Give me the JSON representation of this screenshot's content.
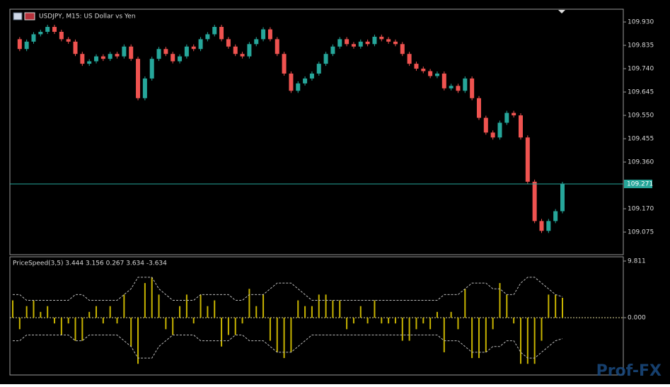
{
  "chart_data": [
    {
      "type": "candlestick",
      "title": "USDJPY, M15:  US Dollar vs Yen",
      "values": [
        109.86,
        109.82,
        109.85,
        109.88,
        109.89,
        109.91,
        109.89,
        109.86,
        109.85,
        109.8,
        109.76,
        109.77,
        109.79,
        109.78,
        109.8,
        109.79,
        109.83,
        109.78,
        109.62,
        109.7,
        109.78,
        109.82,
        109.8,
        109.77,
        109.79,
        109.83,
        109.82,
        109.86,
        109.88,
        109.91,
        109.86,
        109.83,
        109.8,
        109.79,
        109.84,
        109.86,
        109.9,
        109.86,
        109.8,
        109.72,
        109.65,
        109.68,
        109.7,
        109.72,
        109.76,
        109.8,
        109.83,
        109.86,
        109.84,
        109.83,
        109.85,
        109.84,
        109.87,
        109.86,
        109.85,
        109.84,
        109.8,
        109.76,
        109.74,
        109.73,
        109.71,
        109.72,
        109.66,
        109.67,
        109.65,
        109.7,
        109.62,
        109.54,
        109.48,
        109.46,
        109.52,
        109.56,
        109.55,
        109.46,
        109.28,
        109.12,
        109.08,
        109.12,
        109.16,
        109.271
      ],
      "up_color": "#26a69a",
      "down_color": "#ef5350",
      "current_price": 109.271,
      "current_color": "#26a69a",
      "ylim": [
        108.983,
        109.982
      ],
      "yticks": [
        {
          "value": 109.93,
          "label": "109.930"
        },
        {
          "value": 109.835,
          "label": "109.835"
        },
        {
          "value": 109.74,
          "label": "109.740"
        },
        {
          "value": 109.645,
          "label": "109.645"
        },
        {
          "value": 109.55,
          "label": "109.550"
        },
        {
          "value": 109.455,
          "label": "109.455"
        },
        {
          "value": 109.36,
          "label": "109.360"
        },
        {
          "value": 109.17,
          "label": "109.170"
        },
        {
          "value": 109.075,
          "label": "109.075"
        }
      ]
    },
    {
      "type": "histogram",
      "title": "PriceSpeed(3,5) 3.444 3.156 0.267 3.634 -3.634",
      "values": [
        3,
        -2,
        2,
        3,
        1,
        2,
        -1,
        -3,
        -1,
        -4,
        -4,
        1,
        2,
        -1,
        2,
        -1,
        4,
        -5,
        -8,
        6,
        7,
        4,
        -2,
        -3,
        2,
        4,
        -1,
        4,
        2,
        3,
        -5,
        -3,
        -3,
        -1,
        5,
        2,
        4,
        -4,
        -6,
        -7,
        -6,
        3,
        2,
        2,
        4,
        4,
        3,
        3,
        -2,
        -1,
        2,
        -1,
        3,
        -1,
        -1,
        -1,
        -4,
        -4,
        -2,
        -1,
        -2,
        1,
        -6,
        1,
        -2,
        5,
        -7,
        -7,
        -6,
        -2,
        6,
        4,
        -1,
        -8,
        -8,
        -8,
        -4,
        4,
        4,
        3.444
      ],
      "band": [
        4,
        4,
        3,
        3,
        3,
        3,
        3,
        3,
        3,
        4,
        4,
        3,
        3,
        3,
        3,
        3,
        4,
        5,
        7,
        7,
        7,
        5,
        4,
        3,
        3,
        3,
        3,
        4,
        4,
        4,
        4,
        4,
        3,
        3,
        4,
        4,
        4,
        5,
        6,
        6,
        6,
        5,
        4,
        3,
        3,
        3,
        3,
        3,
        3,
        3,
        3,
        3,
        3,
        3,
        3,
        3,
        3,
        3,
        3,
        3,
        3,
        3,
        4,
        4,
        4,
        5,
        6,
        6,
        6,
        5,
        5,
        4,
        4,
        6,
        7,
        7,
        6,
        5,
        4,
        3.634
      ],
      "color": "#c8b400",
      "band_color": "#bbbbbb",
      "ylim": [
        -9.934,
        10.547
      ],
      "yticks": [
        9.811,
        {
          "value": 0,
          "label": "0.000"
        }
      ]
    },
    {
      "watermark": "Prof-FX"
    }
  ]
}
